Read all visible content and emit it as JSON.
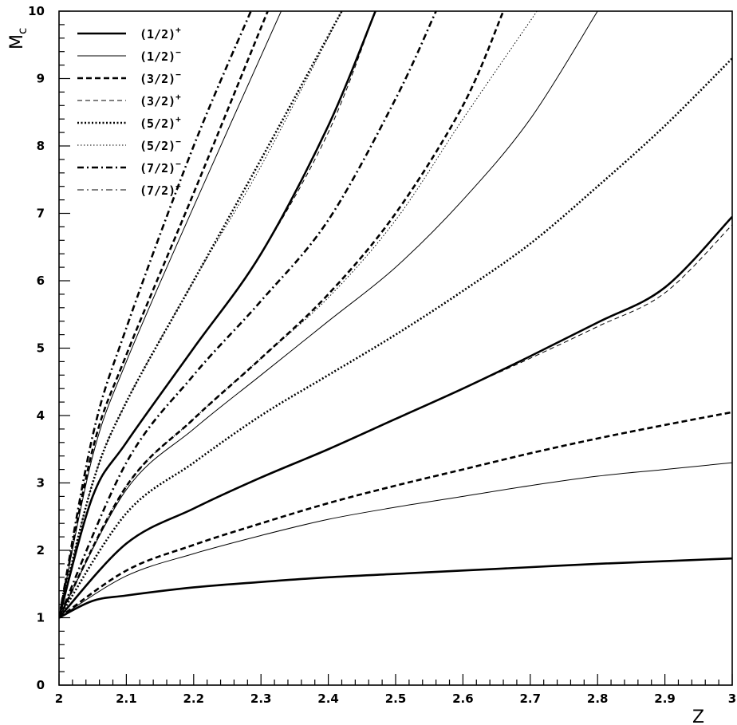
{
  "chart_data": {
    "type": "line",
    "title": "",
    "xlabel": "Z",
    "ylabel": "M",
    "ylabel_sub": "c",
    "xlim": [
      2,
      3
    ],
    "ylim": [
      0,
      10
    ],
    "x_ticks": [
      "2",
      "2.1",
      "2.2",
      "2.3",
      "2.4",
      "2.5",
      "2.6",
      "2.7",
      "2.8",
      "2.9",
      "3"
    ],
    "y_ticks": [
      "0",
      "1",
      "2",
      "3",
      "4",
      "5",
      "6",
      "7",
      "8",
      "9",
      "10"
    ],
    "grid": false,
    "legend_position": "top-left",
    "legend": [
      {
        "name": "(1/2)",
        "sign": "+",
        "style": "thick-solid"
      },
      {
        "name": "(1/2)",
        "sign": "−",
        "style": "thin-solid"
      },
      {
        "name": "(3/2)",
        "sign": "−",
        "style": "thick-dashed"
      },
      {
        "name": "(3/2)",
        "sign": "+",
        "style": "thin-dashed"
      },
      {
        "name": "(5/2)",
        "sign": "+",
        "style": "thick-dotted"
      },
      {
        "name": "(5/2)",
        "sign": "−",
        "style": "thin-dotted"
      },
      {
        "name": "(7/2)",
        "sign": "−",
        "style": "thick-dashdot"
      },
      {
        "name": "(7/2)",
        "sign": "+",
        "style": "thin-dashdot"
      }
    ],
    "series": [
      {
        "style": "thick-solid",
        "x": [
          2,
          2.05,
          2.1,
          2.2,
          2.3,
          2.4,
          2.5,
          2.6,
          2.7,
          2.8,
          2.9,
          3
        ],
        "y": [
          1,
          1.25,
          1.33,
          1.45,
          1.53,
          1.6,
          1.65,
          1.7,
          1.75,
          1.8,
          1.84,
          1.88
        ]
      },
      {
        "style": "thin-solid",
        "x": [
          2,
          2.1,
          2.2,
          2.3,
          2.4,
          2.5,
          2.6,
          2.7,
          2.8,
          2.9,
          3
        ],
        "y": [
          1,
          1.62,
          1.95,
          2.22,
          2.46,
          2.64,
          2.8,
          2.96,
          3.1,
          3.2,
          3.3
        ]
      },
      {
        "style": "thick-dashed",
        "x": [
          2,
          2.1,
          2.2,
          2.3,
          2.4,
          2.5,
          2.6,
          2.7,
          2.8,
          2.9,
          3
        ],
        "y": [
          1,
          1.7,
          2.08,
          2.4,
          2.7,
          2.96,
          3.2,
          3.44,
          3.66,
          3.86,
          4.05
        ]
      },
      {
        "style": "thick-solid",
        "x": [
          2,
          2.1,
          2.2,
          2.3,
          2.4,
          2.5,
          2.6,
          2.7,
          2.8,
          2.9,
          3
        ],
        "y": [
          1,
          2.1,
          2.62,
          3.08,
          3.5,
          3.95,
          4.4,
          4.88,
          5.38,
          5.9,
          6.95
        ]
      },
      {
        "style": "thin-dashed",
        "x": [
          2,
          2.1,
          2.2,
          2.3,
          2.4,
          2.5,
          2.6,
          2.7,
          2.8,
          2.9,
          3
        ],
        "y": [
          1,
          2.1,
          2.62,
          3.08,
          3.5,
          3.95,
          4.4,
          4.85,
          5.32,
          5.82,
          6.83
        ]
      },
      {
        "style": "thick-dotted",
        "x": [
          2,
          2.1,
          2.2,
          2.3,
          2.4,
          2.5,
          2.6,
          2.7,
          2.8,
          2.9,
          3
        ],
        "y": [
          1,
          2.55,
          3.3,
          4.0,
          4.6,
          5.2,
          5.85,
          6.55,
          7.4,
          8.3,
          9.3
        ]
      },
      {
        "style": "thin-solid",
        "x": [
          2,
          2.1,
          2.2,
          2.3,
          2.4,
          2.5,
          2.6,
          2.7,
          2.8
        ],
        "y": [
          1,
          2.9,
          3.8,
          4.6,
          5.4,
          6.2,
          7.2,
          8.4,
          10
        ]
      },
      {
        "style": "thick-dashed",
        "x": [
          2,
          2.1,
          2.2,
          2.3,
          2.4,
          2.5,
          2.6,
          2.66
        ],
        "y": [
          1,
          2.95,
          3.95,
          4.85,
          5.8,
          7.0,
          8.6,
          10
        ]
      },
      {
        "style": "thin-dotted",
        "x": [
          2,
          2.1,
          2.2,
          2.3,
          2.4,
          2.5,
          2.6,
          2.71
        ],
        "y": [
          1,
          2.95,
          3.95,
          4.85,
          5.75,
          6.9,
          8.4,
          10
        ]
      },
      {
        "style": "thick-dashdot",
        "x": [
          2,
          2.1,
          2.2,
          2.3,
          2.4,
          2.5,
          2.56
        ],
        "y": [
          1,
          3.3,
          4.6,
          5.7,
          6.9,
          8.7,
          10
        ]
      },
      {
        "style": "thick-solid",
        "x": [
          2,
          2.05,
          2.1,
          2.2,
          2.3,
          2.4,
          2.47
        ],
        "y": [
          1,
          2.8,
          3.6,
          5.0,
          6.4,
          8.3,
          10
        ]
      },
      {
        "style": "thin-dashed",
        "x": [
          2,
          2.05,
          2.1,
          2.2,
          2.3,
          2.4,
          2.47
        ],
        "y": [
          1,
          2.8,
          3.6,
          5.0,
          6.4,
          8.2,
          10
        ]
      },
      {
        "style": "thick-dotted",
        "x": [
          2,
          2.05,
          2.1,
          2.2,
          2.3,
          2.42
        ],
        "y": [
          1,
          3.0,
          4.2,
          6.0,
          7.8,
          10
        ]
      },
      {
        "style": "thin-dotted",
        "x": [
          2,
          2.05,
          2.1,
          2.2,
          2.3,
          2.42
        ],
        "y": [
          1,
          3.0,
          4.2,
          6.0,
          7.7,
          10
        ]
      },
      {
        "style": "thick-dashed",
        "x": [
          2,
          2.05,
          2.1,
          2.2,
          2.31
        ],
        "y": [
          1,
          3.5,
          4.9,
          7.3,
          10
        ]
      },
      {
        "style": "thin-solid",
        "x": [
          2,
          2.05,
          2.1,
          2.2,
          2.33
        ],
        "y": [
          1,
          3.4,
          4.8,
          7.1,
          10
        ]
      },
      {
        "style": "thick-dashdot",
        "x": [
          2,
          2.05,
          2.1,
          2.2,
          2.285
        ],
        "y": [
          1,
          3.7,
          5.3,
          8.0,
          10
        ]
      }
    ]
  }
}
